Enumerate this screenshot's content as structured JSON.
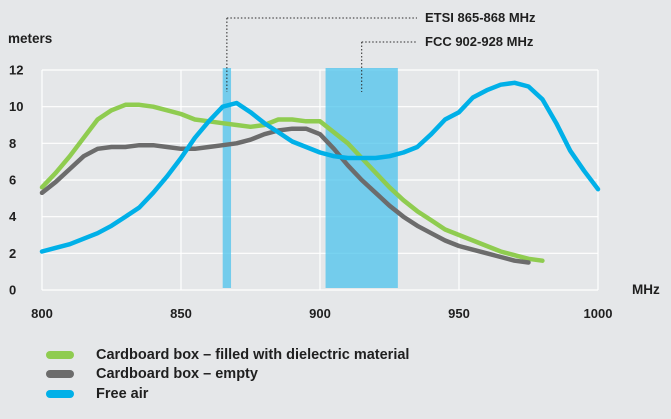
{
  "chart_data": {
    "type": "line",
    "ylabel": "meters",
    "xlabel": "MHz",
    "xlim": [
      800,
      1000
    ],
    "ylim": [
      0,
      12
    ],
    "x_ticks": [
      "800",
      "850",
      "900",
      "950",
      "1000"
    ],
    "y_ticks": [
      "0",
      "2",
      "4",
      "6",
      "8",
      "10",
      "12"
    ],
    "grid": true,
    "legend_position": "bottom-left",
    "bands": [
      {
        "name": "ETSI 865-868 MHz",
        "start": 865,
        "end": 868,
        "color": "#4cc3ec"
      },
      {
        "name": "FCC 902-928 MHz",
        "start": 902,
        "end": 928,
        "color": "#4cc3ec"
      }
    ],
    "series": [
      {
        "name": "Cardboard box – filled with dielectric material",
        "color": "#8fcc50",
        "x": [
          800,
          805,
          810,
          815,
          820,
          825,
          830,
          835,
          840,
          845,
          850,
          855,
          860,
          865,
          870,
          875,
          880,
          885,
          890,
          895,
          900,
          905,
          910,
          915,
          920,
          925,
          930,
          935,
          940,
          945,
          950,
          955,
          960,
          965,
          970,
          975,
          980
        ],
        "values": [
          5.6,
          6.4,
          7.3,
          8.3,
          9.3,
          9.8,
          10.1,
          10.1,
          10.0,
          9.8,
          9.6,
          9.3,
          9.2,
          9.1,
          9.0,
          8.9,
          9.0,
          9.3,
          9.3,
          9.2,
          9.2,
          8.6,
          8.0,
          7.2,
          6.4,
          5.6,
          4.9,
          4.3,
          3.8,
          3.3,
          3.0,
          2.7,
          2.4,
          2.1,
          1.9,
          1.7,
          1.6
        ]
      },
      {
        "name": "Cardboard box – empty",
        "color": "#6c6c6c",
        "x": [
          800,
          805,
          810,
          815,
          820,
          825,
          830,
          835,
          840,
          845,
          850,
          855,
          860,
          865,
          870,
          875,
          880,
          885,
          890,
          895,
          900,
          905,
          910,
          915,
          920,
          925,
          930,
          935,
          940,
          945,
          950,
          955,
          960,
          965,
          970,
          975
        ],
        "values": [
          5.3,
          5.9,
          6.6,
          7.3,
          7.7,
          7.8,
          7.8,
          7.9,
          7.9,
          7.8,
          7.7,
          7.7,
          7.8,
          7.9,
          8.0,
          8.2,
          8.5,
          8.7,
          8.8,
          8.8,
          8.5,
          7.7,
          6.8,
          6.0,
          5.3,
          4.6,
          4.0,
          3.5,
          3.1,
          2.7,
          2.4,
          2.2,
          2.0,
          1.8,
          1.6,
          1.5
        ]
      },
      {
        "name": "Free air",
        "color": "#00b0e8",
        "x": [
          800,
          805,
          810,
          815,
          820,
          825,
          830,
          835,
          840,
          845,
          850,
          855,
          860,
          865,
          870,
          875,
          880,
          885,
          890,
          895,
          900,
          905,
          910,
          915,
          920,
          925,
          930,
          935,
          940,
          945,
          950,
          955,
          960,
          965,
          970,
          975,
          980,
          985,
          990,
          995,
          1000
        ],
        "values": [
          2.1,
          2.3,
          2.5,
          2.8,
          3.1,
          3.5,
          4.0,
          4.5,
          5.3,
          6.2,
          7.2,
          8.3,
          9.2,
          10.0,
          10.2,
          9.7,
          9.1,
          8.6,
          8.1,
          7.8,
          7.5,
          7.3,
          7.2,
          7.2,
          7.2,
          7.3,
          7.5,
          7.8,
          8.5,
          9.3,
          9.7,
          10.5,
          10.9,
          11.2,
          11.3,
          11.1,
          10.4,
          9.1,
          7.6,
          6.5,
          5.5
        ]
      }
    ]
  }
}
